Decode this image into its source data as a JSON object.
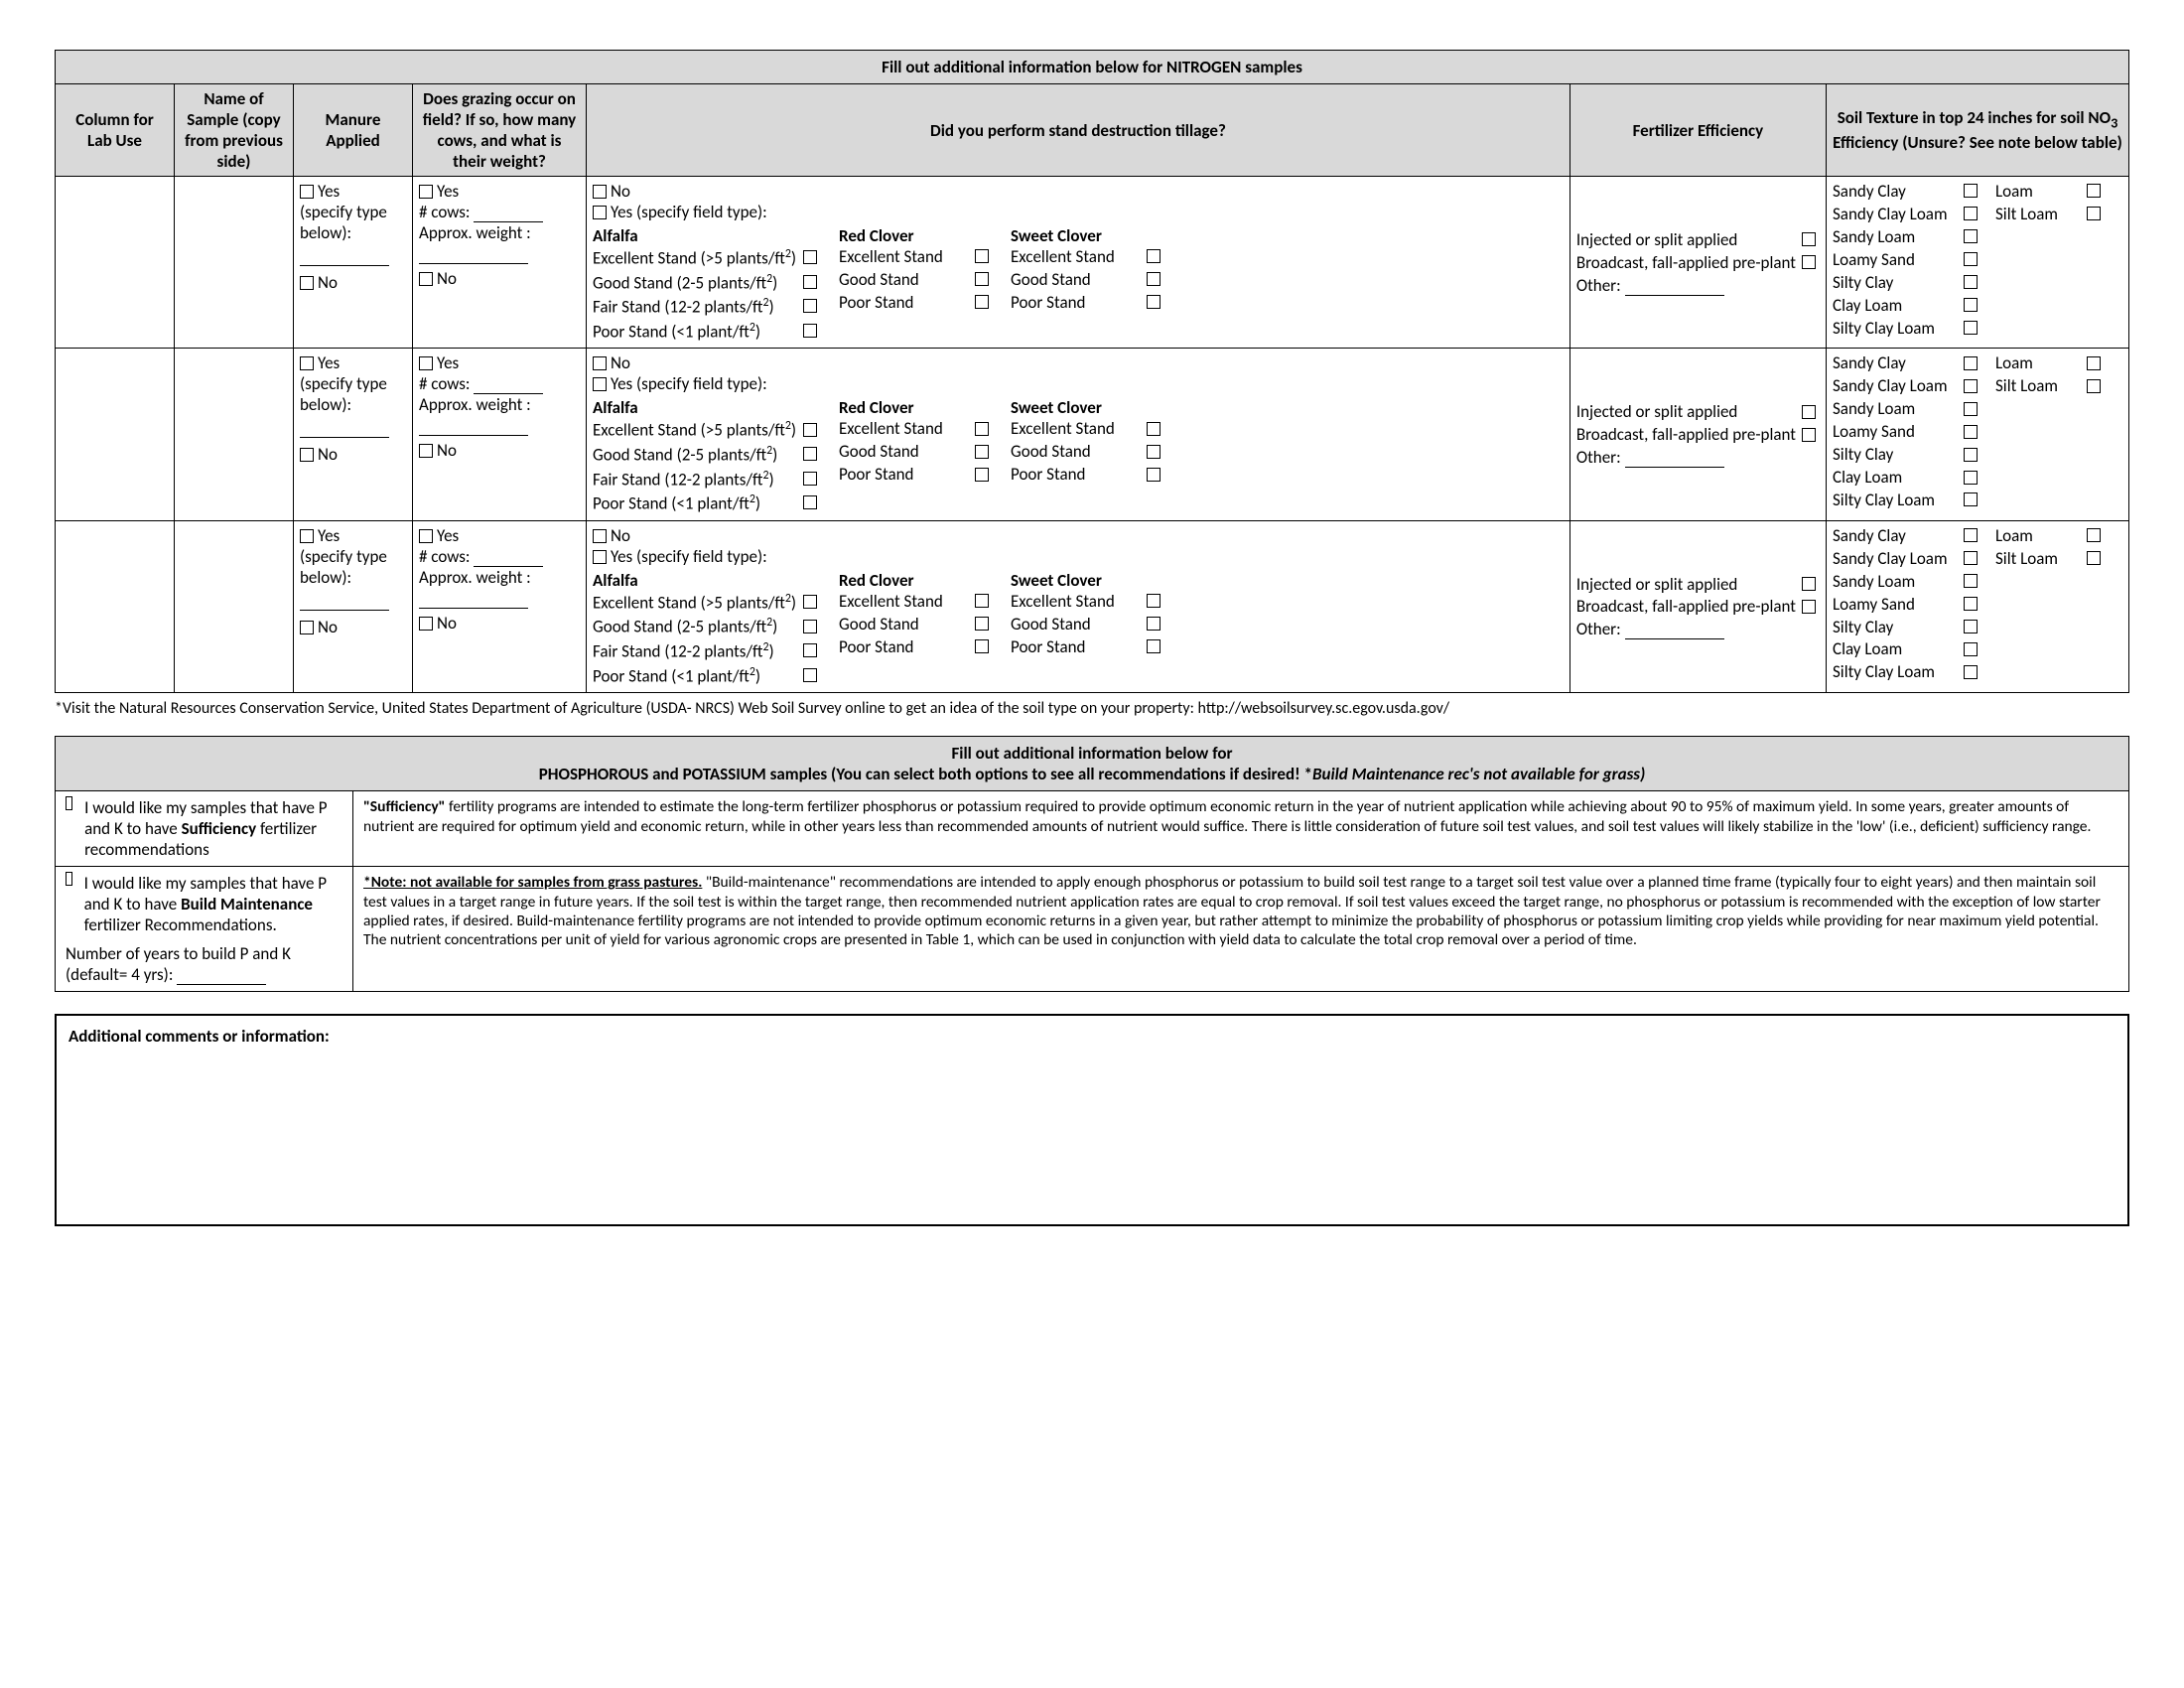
{
  "nitrogen": {
    "title": "Fill out additional information below for NITROGEN samples",
    "headers": {
      "lab": "Column for Lab Use",
      "sample": "Name of Sample (copy from previous side)",
      "manure": "Manure Applied",
      "grazing": "Does grazing occur on field? If so, how many cows, and what is their weight?",
      "stand": "Did you perform stand destruction tillage?",
      "fert": "Fertilizer Efficiency",
      "texture_a": "Soil Texture in top 24 inches for soil NO",
      "texture_b": "Efficiency (Unsure? See note below table)"
    },
    "labels": {
      "yes": "Yes",
      "no": "No",
      "specify": "(specify type below):",
      "cows": "# cows:",
      "weight": "Approx. weight :",
      "yesSpecify": "Yes (specify field type):",
      "alfalfa": "Alfalfa",
      "alf_ex": "Excellent Stand (>5 plants/ft",
      "alf_gd": "Good Stand (2-5 plants/ft",
      "alf_fr": "Fair Stand (12-2 plants/ft",
      "alf_pr": "Poor Stand (<1 plant/ft",
      "redclover": "Red Clover",
      "sweetclover": "Sweet Clover",
      "ex": "Excellent Stand",
      "gd": "Good Stand",
      "pr": "Poor Stand",
      "fert_inj": "Injected or split applied",
      "fert_bcast": "Broadcast, fall-applied pre-plant",
      "fert_other": "Other:",
      "tex": {
        "sandyclay": "Sandy Clay",
        "sandyclayloam": "Sandy Clay Loam",
        "sandyloam": "Sandy Loam",
        "loamysand": "Loamy Sand",
        "siltyclay": "Silty Clay",
        "clayloam": "Clay Loam",
        "siltyclayloam": "Silty Clay Loam",
        "loam": "Loam",
        "siltloam": "Silt Loam"
      }
    }
  },
  "footnote": "*Visit the Natural Resources Conservation Service, United States Department of Agriculture (USDA- NRCS) Web Soil Survey online to get an idea of the soil type on your property: http://websoilsurvey.sc.egov.usda.gov/",
  "pk": {
    "title1": "Fill out additional information below for",
    "title2a": "PHOSPHOROUS and POTASSIUM samples (You can select both options to see all recommendations if desired! *",
    "title2b": "Build Maintenance rec's not available for grass)",
    "opt1_a": "I would like my samples that have P and K to have ",
    "opt1_b": "Sufficiency",
    "opt1_c": " fertilizer recommendations",
    "opt2_a": "I would like my samples that have P and K to have ",
    "opt2_b": "Build Maintenance",
    "opt2_c": " fertilizer Recommendations.",
    "years": "Number of years to build P and K (default= 4 yrs):",
    "desc1_b": "\"Sufficiency\"",
    "desc1": " fertility programs are intended to estimate the long-term fertilizer phosphorus or potassium required to provide optimum economic return in the year of nutrient application while achieving about 90 to 95% of maximum yield. In some years, greater amounts of nutrient are required for optimum yield and economic return, while in other years less than recommended amounts of nutrient would suffice. There is little consideration of future soil test values, and soil test values will likely stabilize in the 'low' (i.e., deficient) sufficiency range.",
    "desc2_u": "*Note: not available for samples from grass pastures.",
    "desc2": " \"Build-maintenance\" recommendations are intended to apply enough phosphorus or potassium to build soil test range to a target soil test value over a planned time frame (typically four to eight years) and then maintain soil test values in a target range in future years. If the soil test is within the target range, then recommended nutrient application rates are equal to crop removal. If soil test values exceed the target range, no phosphorus or potassium is recommended with the exception of low starter applied rates, if desired. Build-maintenance fertility programs are not intended to provide optimum economic returns in a given year, but rather attempt to minimize the probability of phosphorus or potassium limiting crop yields while providing for near maximum yield potential. The nutrient concentrations per unit of yield for various agronomic crops are presented in Table 1, which can be used in conjunction with yield data to calculate the total crop removal over a period of time."
  },
  "comments": "Additional comments or information:"
}
